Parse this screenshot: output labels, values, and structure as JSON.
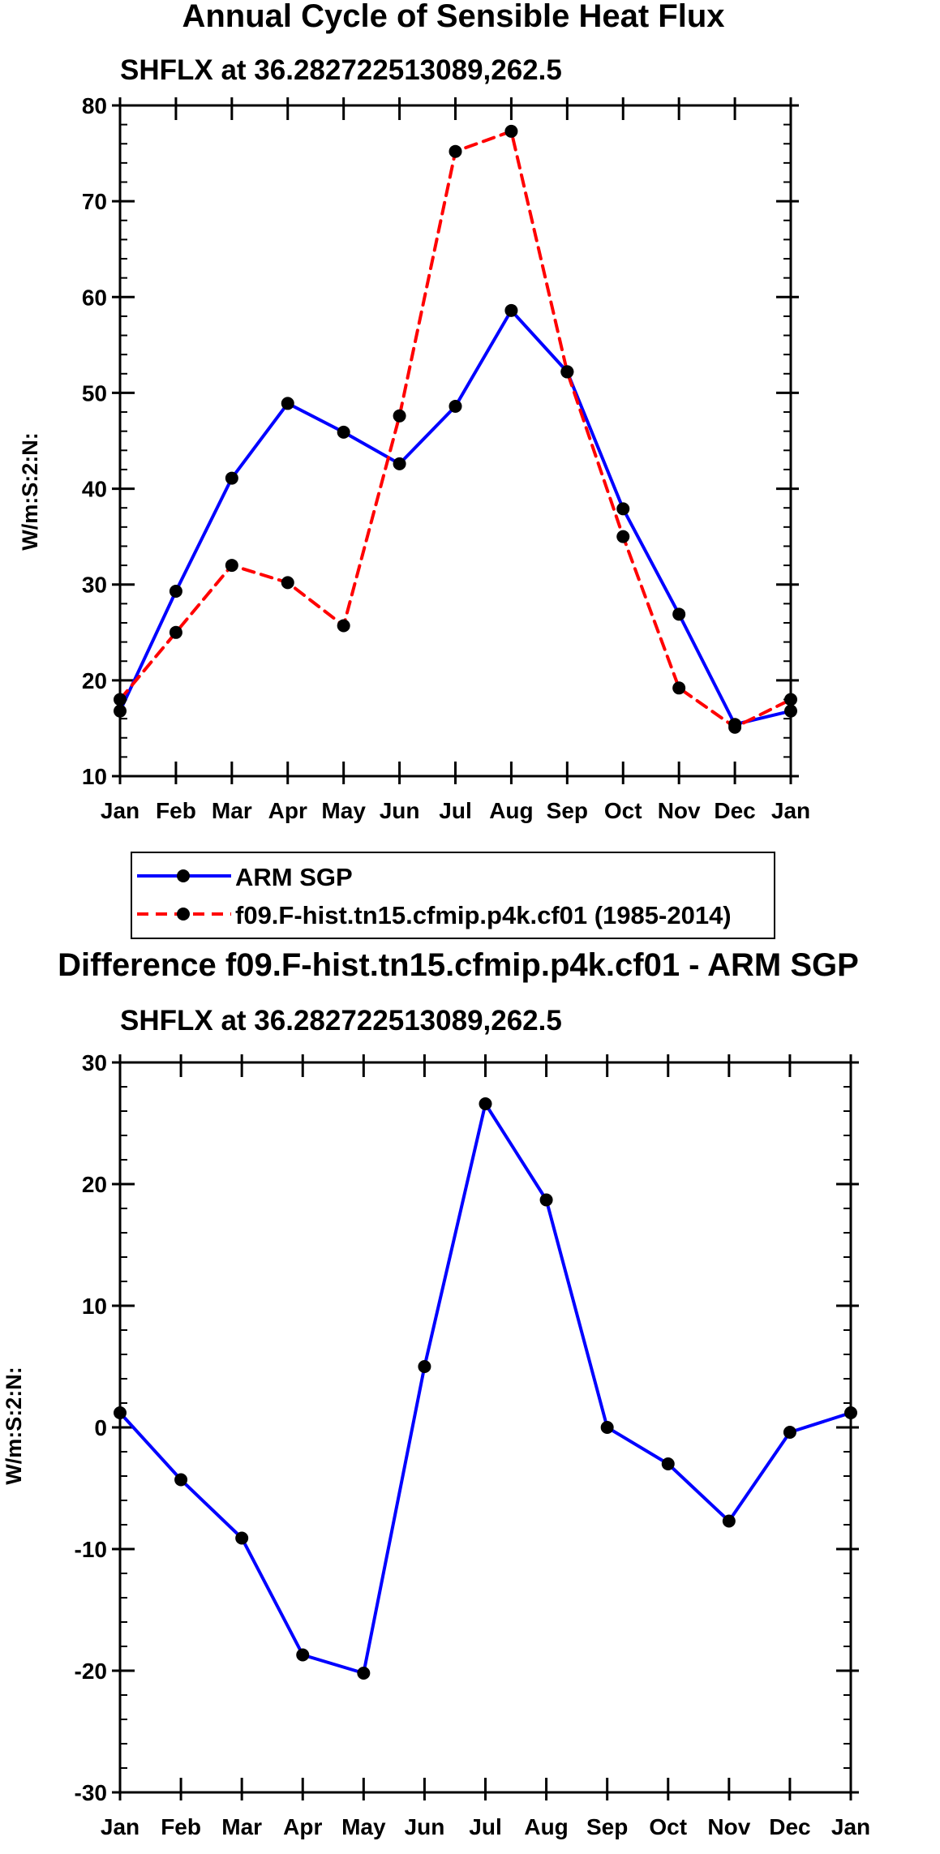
{
  "chart_data": [
    {
      "type": "line",
      "title": "Annual Cycle of Sensible Heat Flux",
      "subtitle": "SHFLX at 36.282722513089,262.5",
      "xlabel": "",
      "ylabel": "W/m:S:2:N:",
      "categories": [
        "Jan",
        "Feb",
        "Mar",
        "Apr",
        "May",
        "Jun",
        "Jul",
        "Aug",
        "Sep",
        "Oct",
        "Nov",
        "Dec",
        "Jan"
      ],
      "ylim": [
        10,
        80
      ],
      "yticks": [
        10,
        20,
        30,
        40,
        50,
        60,
        70,
        80
      ],
      "yminor_step": 2,
      "legend_position": "below",
      "series": [
        {
          "name": "ARM SGP",
          "color": "#0000ff",
          "style": "solid",
          "values": [
            16.8,
            29.3,
            41.1,
            48.9,
            45.9,
            42.6,
            48.6,
            58.6,
            52.2,
            37.9,
            26.9,
            15.4,
            16.8
          ]
        },
        {
          "name": "f09.F-hist.tn15.cfmip.p4k.cf01 (1985-2014)",
          "color": "#ff0000",
          "style": "dashed",
          "values": [
            18.0,
            25.0,
            32.0,
            30.2,
            25.7,
            47.6,
            75.2,
            77.3,
            52.2,
            35.0,
            19.2,
            15.1,
            18.0
          ]
        }
      ]
    },
    {
      "type": "line",
      "title": "Difference f09.F-hist.tn15.cfmip.p4k.cf01 - ARM SGP",
      "subtitle": "SHFLX at 36.282722513089,262.5",
      "xlabel": "",
      "ylabel": "W/m:S:2:N:",
      "categories": [
        "Jan",
        "Feb",
        "Mar",
        "Apr",
        "May",
        "Jun",
        "Jul",
        "Aug",
        "Sep",
        "Oct",
        "Nov",
        "Dec",
        "Jan"
      ],
      "ylim": [
        -30,
        30
      ],
      "yticks": [
        -30,
        -20,
        -10,
        0,
        10,
        20,
        30
      ],
      "yminor_step": 2,
      "series": [
        {
          "name": "Difference",
          "color": "#0000ff",
          "style": "solid",
          "values": [
            1.2,
            -4.3,
            -9.1,
            -18.7,
            -20.2,
            5.0,
            26.6,
            18.7,
            0.0,
            -3.0,
            -7.7,
            -0.4,
            1.2
          ]
        }
      ]
    }
  ]
}
